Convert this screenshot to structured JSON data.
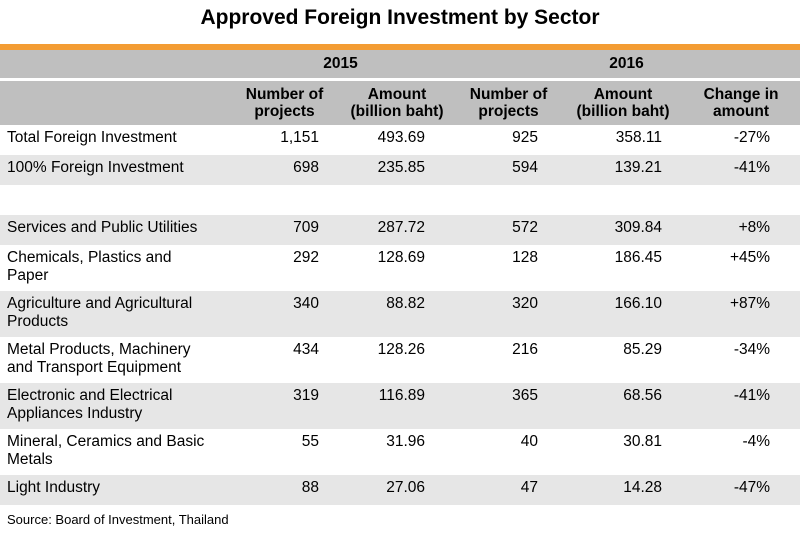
{
  "title": "Approved Foreign Investment by Sector",
  "header": {
    "year1": "2015",
    "year2": "2016",
    "col_projects_1": "Number of",
    "col_projects_2": "projects",
    "col_amount_1": "Amount",
    "col_amount_2": "(billion baht)",
    "col_change_1": "Change in",
    "col_change_2": "amount"
  },
  "rows": [
    {
      "label_1": "Total Foreign Investment",
      "label_2": "",
      "p2015": "1,151",
      "a2015": "493.69",
      "p2016": "925",
      "a2016": "358.11",
      "change": "-27%"
    },
    {
      "label_1": "100% Foreign Investment",
      "label_2": "",
      "p2015": "698",
      "a2015": "235.85",
      "p2016": "594",
      "a2016": "139.21",
      "change": "-41%"
    },
    {
      "label_1": "Services and Public Utilities",
      "label_2": "",
      "p2015": "709",
      "a2015": "287.72",
      "p2016": "572",
      "a2016": "309.84",
      "change": "+8%"
    },
    {
      "label_1": "Chemicals, Plastics and",
      "label_2": "Paper",
      "p2015": "292",
      "a2015": "128.69",
      "p2016": "128",
      "a2016": "186.45",
      "change": "+45%"
    },
    {
      "label_1": "Agriculture and Agricultural",
      "label_2": "Products",
      "p2015": "340",
      "a2015": "88.82",
      "p2016": "320",
      "a2016": "166.10",
      "change": "+87%"
    },
    {
      "label_1": "Metal Products, Machinery",
      "label_2": "and Transport Equipment",
      "p2015": "434",
      "a2015": "128.26",
      "p2016": "216",
      "a2016": "85.29",
      "change": "-34%"
    },
    {
      "label_1": "Electronic and Electrical",
      "label_2": "Appliances Industry",
      "p2015": "319",
      "a2015": "116.89",
      "p2016": "365",
      "a2016": "68.56",
      "change": "-41%"
    },
    {
      "label_1": "Mineral, Ceramics and Basic",
      "label_2": "Metals",
      "p2015": "55",
      "a2015": "31.96",
      "p2016": "40",
      "a2016": "30.81",
      "change": "-4%"
    },
    {
      "label_1": "Light Industry",
      "label_2": "",
      "p2015": "88",
      "a2015": "27.06",
      "p2016": "47",
      "a2016": "14.28",
      "change": "-47%"
    }
  ],
  "source": "Source: Board of Investment, Thailand",
  "colors": {
    "accent": "#f39c33",
    "header_bg": "#bfbfbf",
    "shade": "#e6e6e6"
  }
}
